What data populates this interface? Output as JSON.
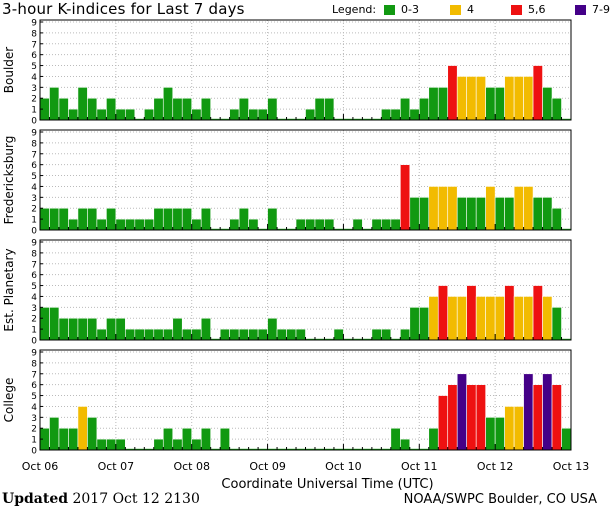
{
  "title": "3-hour K-indices for Last 7 days",
  "legend": {
    "label": "Legend:",
    "items": [
      {
        "label": "0-3",
        "color": "#119911"
      },
      {
        "label": "4",
        "color": "#f2bb00"
      },
      {
        "label": "5,6",
        "color": "#ee1111"
      },
      {
        "label": "7-9",
        "color": "#440088"
      }
    ]
  },
  "footer": {
    "updated_label": "Updated",
    "updated_value": "2017 Oct 12 2130",
    "source": "NOAA/SWPC Boulder, CO USA"
  },
  "chart_data": {
    "type": "bar",
    "title": "3-hour K-indices for Last 7 days",
    "xlabel": "Coordinate Universal Time (UTC)",
    "x_ticks": [
      "Oct 06",
      "Oct 07",
      "Oct 08",
      "Oct 09",
      "Oct 10",
      "Oct 11",
      "Oct 12",
      "Oct 13"
    ],
    "y_ticks": [
      0,
      1,
      2,
      3,
      4,
      5,
      6,
      7,
      8,
      9
    ],
    "ylim": [
      0,
      9
    ],
    "bins_per_day": 8,
    "bins_total": 56,
    "panels": [
      {
        "name": "Boulder",
        "values": [
          2,
          3,
          2,
          1,
          3,
          2,
          1,
          2,
          1,
          1,
          0,
          1,
          2,
          3,
          2,
          2,
          1,
          2,
          0,
          0,
          1,
          2,
          1,
          1,
          2,
          0,
          0,
          0,
          1,
          2,
          2,
          0,
          0,
          0,
          0,
          0,
          1,
          1,
          2,
          1,
          2,
          3,
          3,
          5,
          4,
          4,
          4,
          3,
          3,
          4,
          4,
          4,
          5,
          3,
          2,
          0
        ]
      },
      {
        "name": "Fredericksburg",
        "values": [
          2,
          2,
          2,
          1,
          2,
          2,
          1,
          2,
          1,
          1,
          1,
          1,
          2,
          2,
          2,
          2,
          1,
          2,
          0,
          0,
          1,
          2,
          1,
          0,
          2,
          0,
          0,
          1,
          1,
          1,
          1,
          0,
          0,
          1,
          0,
          1,
          1,
          1,
          6,
          3,
          3,
          4,
          4,
          4,
          3,
          3,
          3,
          4,
          3,
          3,
          4,
          4,
          3,
          3,
          2,
          0
        ]
      },
      {
        "name": "Est. Planetary",
        "values": [
          3,
          3,
          2,
          2,
          2,
          2,
          1,
          2,
          2,
          1,
          1,
          1,
          1,
          1,
          2,
          1,
          1,
          2,
          0,
          1,
          1,
          1,
          1,
          1,
          2,
          1,
          1,
          1,
          0,
          0,
          0,
          1,
          0,
          0,
          0,
          1,
          1,
          0,
          1,
          3,
          3,
          4,
          5,
          4,
          4,
          5,
          4,
          4,
          4,
          5,
          4,
          4,
          5,
          4,
          3,
          0
        ]
      },
      {
        "name": "College",
        "values": [
          2,
          3,
          2,
          2,
          4,
          3,
          1,
          1,
          1,
          0,
          0,
          0,
          1,
          2,
          1,
          2,
          1,
          2,
          0,
          2,
          0,
          0,
          0,
          0,
          0,
          0,
          0,
          0,
          0,
          0,
          0,
          0,
          0,
          0,
          0,
          0,
          0,
          2,
          1,
          0,
          0,
          2,
          5,
          6,
          7,
          6,
          6,
          3,
          3,
          4,
          4,
          7,
          6,
          7,
          6,
          2
        ]
      }
    ]
  }
}
